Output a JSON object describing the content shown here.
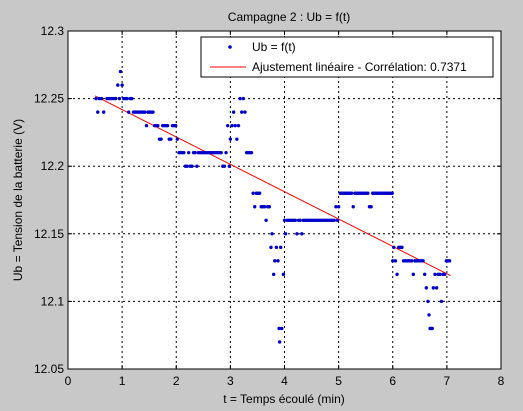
{
  "chart_data": {
    "type": "scatter",
    "title": "Campagne 2 : Ub = f(t)",
    "xlabel": "t = Temps écoulé (min)",
    "ylabel": "Ub = Tension de la batterie (V)",
    "xlim": [
      0,
      8
    ],
    "ylim": [
      12.05,
      12.3
    ],
    "xticks": [
      0,
      1,
      2,
      3,
      4,
      5,
      6,
      7,
      8
    ],
    "yticks": [
      12.05,
      12.1,
      12.15,
      12.2,
      12.25,
      12.3
    ],
    "xtick_labels": [
      "0",
      "1",
      "2",
      "3",
      "4",
      "5",
      "6",
      "7",
      "8"
    ],
    "ytick_labels": [
      "12.05",
      "12.1",
      "12.15",
      "12.2",
      "12.25",
      "12.3"
    ],
    "grid": true,
    "legend_position": "top-right",
    "series": [
      {
        "name": "Ub = f(t)",
        "style": "points",
        "color": "#0000cc",
        "points": [
          [
            0.52,
            12.25
          ],
          [
            0.55,
            12.24
          ],
          [
            0.58,
            12.25
          ],
          [
            0.62,
            12.25
          ],
          [
            0.66,
            12.24
          ],
          [
            0.72,
            12.25
          ],
          [
            0.76,
            12.25
          ],
          [
            0.8,
            12.25
          ],
          [
            0.84,
            12.25
          ],
          [
            0.88,
            12.25
          ],
          [
            0.92,
            12.26
          ],
          [
            0.95,
            12.25
          ],
          [
            0.97,
            12.27
          ],
          [
            1.0,
            12.26
          ],
          [
            1.03,
            12.25
          ],
          [
            1.06,
            12.25
          ],
          [
            1.09,
            12.25
          ],
          [
            1.12,
            12.24
          ],
          [
            1.15,
            12.25
          ],
          [
            1.18,
            12.25
          ],
          [
            1.21,
            12.24
          ],
          [
            1.24,
            12.24
          ],
          [
            1.27,
            12.24
          ],
          [
            1.3,
            12.24
          ],
          [
            1.33,
            12.24
          ],
          [
            1.36,
            12.24
          ],
          [
            1.39,
            12.24
          ],
          [
            1.42,
            12.24
          ],
          [
            1.45,
            12.23
          ],
          [
            1.48,
            12.24
          ],
          [
            1.51,
            12.24
          ],
          [
            1.54,
            12.24
          ],
          [
            1.57,
            12.24
          ],
          [
            1.6,
            12.23
          ],
          [
            1.63,
            12.23
          ],
          [
            1.66,
            12.23
          ],
          [
            1.69,
            12.22
          ],
          [
            1.72,
            12.22
          ],
          [
            1.75,
            12.23
          ],
          [
            1.78,
            12.23
          ],
          [
            1.81,
            12.23
          ],
          [
            1.84,
            12.23
          ],
          [
            1.87,
            12.22
          ],
          [
            1.9,
            12.22
          ],
          [
            1.93,
            12.23
          ],
          [
            1.96,
            12.23
          ],
          [
            1.99,
            12.23
          ],
          [
            2.02,
            12.22
          ],
          [
            2.05,
            12.21
          ],
          [
            2.08,
            12.21
          ],
          [
            2.11,
            12.21
          ],
          [
            2.14,
            12.21
          ],
          [
            2.17,
            12.2
          ],
          [
            2.2,
            12.2
          ],
          [
            2.23,
            12.21
          ],
          [
            2.26,
            12.2
          ],
          [
            2.29,
            12.2
          ],
          [
            2.32,
            12.21
          ],
          [
            2.35,
            12.21
          ],
          [
            2.38,
            12.2
          ],
          [
            2.41,
            12.21
          ],
          [
            2.44,
            12.21
          ],
          [
            2.47,
            12.21
          ],
          [
            2.5,
            12.21
          ],
          [
            2.53,
            12.21
          ],
          [
            2.56,
            12.21
          ],
          [
            2.59,
            12.21
          ],
          [
            2.62,
            12.21
          ],
          [
            2.65,
            12.21
          ],
          [
            2.68,
            12.21
          ],
          [
            2.71,
            12.21
          ],
          [
            2.74,
            12.21
          ],
          [
            2.77,
            12.21
          ],
          [
            2.8,
            12.21
          ],
          [
            2.83,
            12.21
          ],
          [
            2.86,
            12.2
          ],
          [
            2.89,
            12.2
          ],
          [
            2.92,
            12.21
          ],
          [
            2.95,
            12.23
          ],
          [
            2.98,
            12.2
          ],
          [
            3.0,
            12.22
          ],
          [
            3.03,
            12.23
          ],
          [
            3.06,
            12.24
          ],
          [
            3.09,
            12.23
          ],
          [
            3.12,
            12.22
          ],
          [
            3.15,
            12.23
          ],
          [
            3.18,
            12.25
          ],
          [
            3.21,
            12.24
          ],
          [
            3.24,
            12.25
          ],
          [
            3.27,
            12.24
          ],
          [
            3.3,
            12.21
          ],
          [
            3.33,
            12.21
          ],
          [
            3.36,
            12.21
          ],
          [
            3.39,
            12.21
          ],
          [
            3.42,
            12.18
          ],
          [
            3.45,
            12.17
          ],
          [
            3.48,
            12.18
          ],
          [
            3.51,
            12.18
          ],
          [
            3.54,
            12.18
          ],
          [
            3.57,
            12.17
          ],
          [
            3.6,
            12.17
          ],
          [
            3.63,
            12.17
          ],
          [
            3.66,
            12.16
          ],
          [
            3.69,
            12.17
          ],
          [
            3.72,
            12.17
          ],
          [
            3.75,
            12.14
          ],
          [
            3.77,
            12.15
          ],
          [
            3.8,
            12.12
          ],
          [
            3.82,
            12.13
          ],
          [
            3.85,
            12.14
          ],
          [
            3.88,
            12.13
          ],
          [
            3.9,
            12.08
          ],
          [
            3.91,
            12.07
          ],
          [
            3.93,
            12.14
          ],
          [
            3.95,
            12.08
          ],
          [
            3.98,
            12.12
          ],
          [
            4.0,
            12.16
          ],
          [
            4.02,
            12.15
          ],
          [
            4.05,
            12.16
          ],
          [
            4.08,
            12.16
          ],
          [
            4.11,
            12.16
          ],
          [
            4.14,
            12.16
          ],
          [
            4.17,
            12.16
          ],
          [
            4.2,
            12.16
          ],
          [
            4.23,
            12.15
          ],
          [
            4.26,
            12.16
          ],
          [
            4.29,
            12.16
          ],
          [
            4.32,
            12.15
          ],
          [
            4.35,
            12.16
          ],
          [
            4.38,
            12.16
          ],
          [
            4.41,
            12.16
          ],
          [
            4.44,
            12.16
          ],
          [
            4.47,
            12.16
          ],
          [
            4.5,
            12.16
          ],
          [
            4.53,
            12.16
          ],
          [
            4.56,
            12.16
          ],
          [
            4.59,
            12.16
          ],
          [
            4.62,
            12.16
          ],
          [
            4.65,
            12.16
          ],
          [
            4.68,
            12.16
          ],
          [
            4.71,
            12.16
          ],
          [
            4.74,
            12.16
          ],
          [
            4.77,
            12.16
          ],
          [
            4.8,
            12.16
          ],
          [
            4.83,
            12.16
          ],
          [
            4.86,
            12.16
          ],
          [
            4.89,
            12.16
          ],
          [
            4.92,
            12.16
          ],
          [
            4.95,
            12.17
          ],
          [
            4.98,
            12.16
          ],
          [
            5.0,
            12.17
          ],
          [
            5.03,
            12.18
          ],
          [
            5.06,
            12.18
          ],
          [
            5.09,
            12.18
          ],
          [
            5.12,
            12.18
          ],
          [
            5.15,
            12.18
          ],
          [
            5.18,
            12.18
          ],
          [
            5.21,
            12.18
          ],
          [
            5.24,
            12.18
          ],
          [
            5.27,
            12.17
          ],
          [
            5.3,
            12.18
          ],
          [
            5.33,
            12.18
          ],
          [
            5.36,
            12.18
          ],
          [
            5.39,
            12.18
          ],
          [
            5.42,
            12.18
          ],
          [
            5.45,
            12.18
          ],
          [
            5.48,
            12.18
          ],
          [
            5.51,
            12.18
          ],
          [
            5.54,
            12.18
          ],
          [
            5.57,
            12.17
          ],
          [
            5.6,
            12.17
          ],
          [
            5.63,
            12.18
          ],
          [
            5.66,
            12.18
          ],
          [
            5.69,
            12.18
          ],
          [
            5.72,
            12.18
          ],
          [
            5.75,
            12.18
          ],
          [
            5.78,
            12.18
          ],
          [
            5.81,
            12.18
          ],
          [
            5.84,
            12.18
          ],
          [
            5.87,
            12.18
          ],
          [
            5.9,
            12.18
          ],
          [
            5.93,
            12.18
          ],
          [
            5.96,
            12.18
          ],
          [
            5.99,
            12.18
          ],
          [
            6.0,
            12.13
          ],
          [
            6.02,
            12.14
          ],
          [
            6.05,
            12.13
          ],
          [
            6.08,
            12.12
          ],
          [
            6.11,
            12.14
          ],
          [
            6.14,
            12.14
          ],
          [
            6.17,
            12.14
          ],
          [
            6.2,
            12.13
          ],
          [
            6.23,
            12.13
          ],
          [
            6.26,
            12.13
          ],
          [
            6.29,
            12.13
          ],
          [
            6.32,
            12.13
          ],
          [
            6.35,
            12.13
          ],
          [
            6.38,
            12.12
          ],
          [
            6.41,
            12.13
          ],
          [
            6.44,
            12.13
          ],
          [
            6.47,
            12.13
          ],
          [
            6.5,
            12.13
          ],
          [
            6.53,
            12.13
          ],
          [
            6.56,
            12.13
          ],
          [
            6.59,
            12.12
          ],
          [
            6.62,
            12.11
          ],
          [
            6.65,
            12.1
          ],
          [
            6.67,
            12.09
          ],
          [
            6.69,
            12.08
          ],
          [
            6.71,
            12.08
          ],
          [
            6.73,
            12.08
          ],
          [
            6.75,
            12.11
          ],
          [
            6.78,
            12.12
          ],
          [
            6.81,
            12.11
          ],
          [
            6.84,
            12.12
          ],
          [
            6.87,
            12.12
          ],
          [
            6.9,
            12.1
          ],
          [
            6.93,
            12.12
          ],
          [
            6.96,
            12.12
          ],
          [
            6.99,
            12.13
          ],
          [
            7.02,
            12.13
          ],
          [
            7.05,
            12.13
          ]
        ]
      },
      {
        "name": "Ajustement linéaire - Corrélation: 0.7371",
        "style": "line",
        "color": "#ff0000",
        "points": [
          [
            0.5,
            12.252
          ],
          [
            7.07,
            12.119
          ]
        ]
      }
    ]
  }
}
